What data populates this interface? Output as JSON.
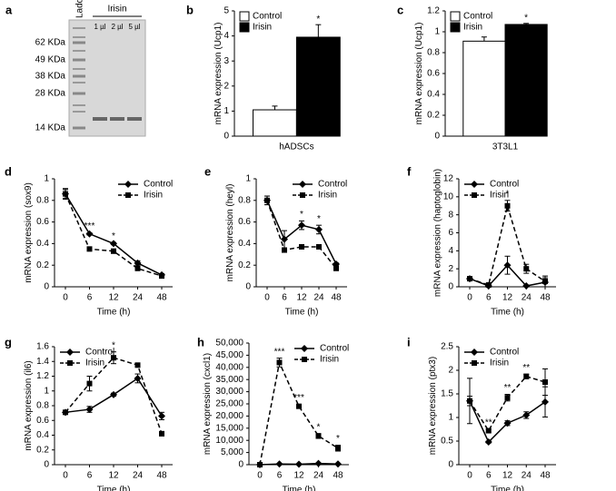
{
  "chart_data": [
    {
      "type": "gel",
      "panel_label": "a",
      "lanes": [
        "Ladder",
        "1 µl",
        "2 µl",
        "5 µl"
      ],
      "group_label": "Irisin",
      "markers": [
        "62 KDa",
        "49 KDa",
        "38 KDa",
        "28 KDa",
        "14 KDa"
      ]
    },
    {
      "type": "bar",
      "panel_label": "b",
      "y_label": "mRNA expression (Ucp1)",
      "categories": [
        "hADSCs"
      ],
      "series": [
        {
          "name": "Control",
          "color": "#ffffff",
          "values": [
            1.05
          ],
          "errors": [
            0.15
          ]
        },
        {
          "name": "Irisin",
          "color": "#000000",
          "values": [
            3.95
          ],
          "errors": [
            0.5
          ]
        }
      ],
      "ylim": [
        0,
        5
      ],
      "yticks": [
        0,
        1,
        2,
        3,
        4,
        5
      ],
      "legend": "upper left",
      "annotations": [
        {
          "text": "*",
          "category": "hADSCs"
        }
      ]
    },
    {
      "type": "bar",
      "panel_label": "c",
      "y_label": "mRNA expression (Ucp1)",
      "categories": [
        "3T3L1"
      ],
      "series": [
        {
          "name": "Control",
          "color": "#ffffff",
          "values": [
            0.91
          ],
          "errors": [
            0.04
          ]
        },
        {
          "name": "Irisin",
          "color": "#000000",
          "values": [
            1.07
          ],
          "errors": [
            0.01
          ]
        }
      ],
      "ylim": [
        0,
        1.2
      ],
      "yticks": [
        0,
        0.2,
        0.4,
        0.6,
        0.8,
        1,
        1.2
      ],
      "legend": "upper left",
      "annotations": [
        {
          "text": "*",
          "category": "3T3L1"
        }
      ]
    },
    {
      "type": "line",
      "panel_label": "d",
      "y_label": "mRNA expression (sox9)",
      "x_label": "Time (h)",
      "categories": [
        "0",
        "6",
        "12",
        "24",
        "48"
      ],
      "series": [
        {
          "name": "Control",
          "color": "#000000",
          "style": "solid",
          "marker": "diamond",
          "values": [
            0.86,
            0.49,
            0.4,
            0.22,
            0.11
          ],
          "errors": [
            0.04,
            0.01,
            0.01,
            0.02,
            0.01
          ]
        },
        {
          "name": "Irisin",
          "color": "#000000",
          "style": "dashed",
          "marker": "square",
          "values": [
            0.86,
            0.35,
            0.33,
            0.17,
            0.1
          ],
          "errors": [
            0.05,
            0.01,
            0.02,
            0.01,
            0.01
          ]
        }
      ],
      "ylim": [
        0,
        1
      ],
      "yticks": [
        0,
        0.2,
        0.4,
        0.6,
        0.8,
        1
      ],
      "legend": "upper right",
      "annotations": [
        {
          "text": "***",
          "category": "6"
        },
        {
          "text": "*",
          "category": "12"
        }
      ]
    },
    {
      "type": "line",
      "panel_label": "e",
      "y_label": "mRNA expression (heyl)",
      "x_label": "Time (h)",
      "categories": [
        "0",
        "6",
        "12",
        "24",
        "48"
      ],
      "series": [
        {
          "name": "Control",
          "color": "#000000",
          "style": "solid",
          "marker": "diamond",
          "values": [
            0.8,
            0.44,
            0.57,
            0.53,
            0.21
          ],
          "errors": [
            0.04,
            0.08,
            0.04,
            0.04,
            0.01
          ]
        },
        {
          "name": "Irisin",
          "color": "#000000",
          "style": "dashed",
          "marker": "square",
          "values": [
            0.8,
            0.34,
            0.37,
            0.37,
            0.17
          ],
          "errors": [
            0.04,
            0.02,
            0.01,
            0.01,
            0.01
          ]
        }
      ],
      "ylim": [
        0,
        1
      ],
      "yticks": [
        0,
        0.2,
        0.4,
        0.6,
        0.8,
        1
      ],
      "legend": "upper right",
      "annotations": [
        {
          "text": "*",
          "category": "12"
        },
        {
          "text": "*",
          "category": "24"
        }
      ]
    },
    {
      "type": "line",
      "panel_label": "f",
      "y_label": "mRNA expression (haptoglobin)",
      "x_label": "Time (h)",
      "categories": [
        "0",
        "6",
        "12",
        "24",
        "48"
      ],
      "series": [
        {
          "name": "Control",
          "color": "#000000",
          "style": "solid",
          "marker": "diamond",
          "values": [
            0.9,
            0.1,
            2.4,
            0.1,
            0.5
          ],
          "errors": [
            0.1,
            0.1,
            1.0,
            0.1,
            0.5
          ]
        },
        {
          "name": "Irisin",
          "color": "#000000",
          "style": "dashed",
          "marker": "square",
          "values": [
            0.9,
            0.2,
            9.0,
            2.0,
            0.6
          ],
          "errors": [
            0.1,
            0.1,
            0.6,
            0.5,
            0.6
          ]
        }
      ],
      "ylim": [
        0,
        12
      ],
      "yticks": [
        0,
        2,
        4,
        6,
        8,
        10,
        12
      ],
      "legend": "upper left",
      "annotations": [
        {
          "text": "*",
          "category": "12"
        }
      ]
    },
    {
      "type": "line",
      "panel_label": "g",
      "y_label": "mRNA expression (il6)",
      "x_label": "Time (h)",
      "categories": [
        "0",
        "6",
        "12",
        "24",
        "48"
      ],
      "series": [
        {
          "name": "Control",
          "color": "#000000",
          "style": "solid",
          "marker": "diamond",
          "values": [
            0.71,
            0.75,
            0.95,
            1.17,
            0.66
          ],
          "errors": [
            0.01,
            0.04,
            0.02,
            0.06,
            0.05
          ]
        },
        {
          "name": "Irisin",
          "color": "#000000",
          "style": "dashed",
          "marker": "square",
          "values": [
            0.71,
            1.1,
            1.45,
            1.35,
            0.42
          ],
          "errors": [
            0.01,
            0.1,
            0.08,
            0.02,
            0.03
          ]
        }
      ],
      "ylim": [
        0,
        1.6
      ],
      "yticks": [
        0,
        0.2,
        0.4,
        0.6,
        0.8,
        1,
        1.2,
        1.4,
        1.6
      ],
      "legend": "upper left",
      "annotations": [
        {
          "text": "*",
          "category": "12"
        }
      ]
    },
    {
      "type": "line",
      "panel_label": "h",
      "y_label": "mRNA expression (cxcl1)",
      "x_label": "Time (h)",
      "categories": [
        "0",
        "6",
        "12",
        "24",
        "48"
      ],
      "series": [
        {
          "name": "Control",
          "color": "#000000",
          "style": "solid",
          "marker": "diamond",
          "values": [
            0,
            300,
            200,
            500,
            300
          ],
          "errors": [
            0,
            100,
            100,
            100,
            100
          ]
        },
        {
          "name": "Irisin",
          "color": "#000000",
          "style": "dashed",
          "marker": "square",
          "values": [
            0,
            42000,
            24000,
            11800,
            6800
          ],
          "errors": [
            0,
            1800,
            800,
            1000,
            1200
          ]
        }
      ],
      "ylim": [
        0,
        50000
      ],
      "yticks": [
        0,
        {
          "value": 5000,
          "label": "5,000"
        },
        {
          "value": 10000,
          "label": "10,000"
        },
        {
          "value": 15000,
          "label": "15,000"
        },
        {
          "value": 20000,
          "label": "20,000"
        },
        {
          "value": 25000,
          "label": "25,000"
        },
        {
          "value": 30000,
          "label": "30,000"
        },
        {
          "value": 35000,
          "label": "35,000"
        },
        {
          "value": 40000,
          "label": "40,000"
        },
        {
          "value": 45000,
          "label": "45,000"
        },
        {
          "value": 50000,
          "label": "50,000"
        }
      ],
      "legend": "upper right",
      "annotations": [
        {
          "text": "***",
          "category": "6"
        },
        {
          "text": "***",
          "category": "12"
        },
        {
          "text": "*",
          "category": "24"
        },
        {
          "text": "*",
          "category": "48"
        }
      ]
    },
    {
      "type": "line",
      "panel_label": "i",
      "y_label": "mRNA expression (ptx3)",
      "x_label": "Time (h)",
      "categories": [
        "0",
        "6",
        "12",
        "24",
        "48"
      ],
      "series": [
        {
          "name": "Control",
          "color": "#000000",
          "style": "solid",
          "marker": "diamond",
          "values": [
            1.35,
            0.48,
            0.88,
            1.05,
            1.33
          ],
          "errors": [
            0.48,
            0.02,
            0.05,
            0.07,
            0.32
          ]
        },
        {
          "name": "Irisin",
          "color": "#000000",
          "style": "dashed",
          "marker": "square",
          "values": [
            1.35,
            0.72,
            1.42,
            1.87,
            1.75
          ],
          "errors": [
            0.1,
            0.03,
            0.07,
            0.05,
            0.28
          ]
        }
      ],
      "ylim": [
        0,
        2.5
      ],
      "yticks": [
        0,
        0.5,
        1,
        1.5,
        2,
        2.5
      ],
      "legend": "upper left",
      "annotations": [
        {
          "text": "**",
          "category": "6"
        },
        {
          "text": "**",
          "category": "12"
        },
        {
          "text": "**",
          "category": "24"
        }
      ]
    }
  ]
}
